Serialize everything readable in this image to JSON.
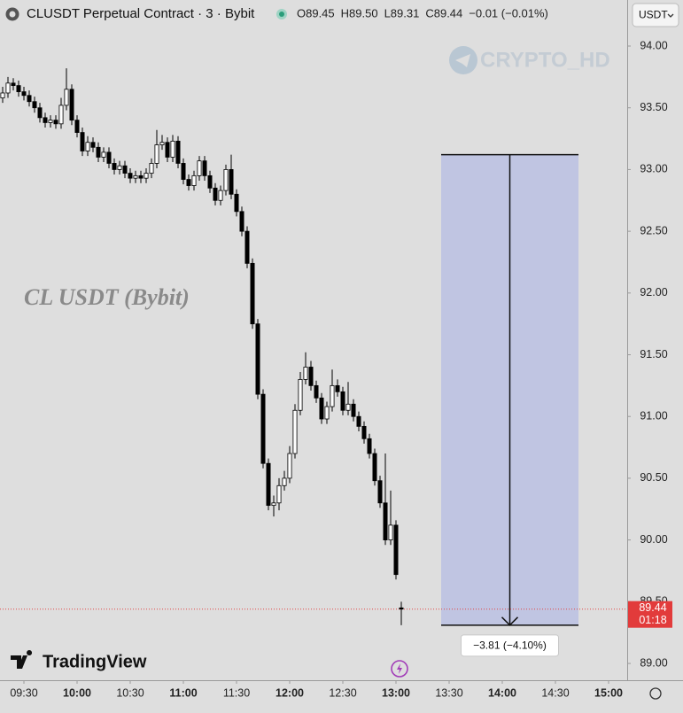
{
  "chart_data": {
    "type": "candlestick",
    "title": "CLUSDT Perpetual Contract · 3 · Bybit",
    "ohlc_header": [
      "O89.45",
      "H89.50",
      "L89.31",
      "C89.44",
      "−0.01 (−0.01%)"
    ],
    "currency": "USDT",
    "watermark": "CRYPTO_HD",
    "annotation": "CL USDT (Bybit)",
    "brand": "TradingView",
    "last_price": 89.44,
    "last_price_label": "89.44",
    "countdown": "01:18",
    "up_color": "#ffffff",
    "down_color": "#000000",
    "x": [
      558,
      561,
      564,
      567,
      570,
      573,
      576,
      579,
      582,
      585,
      588,
      591,
      594,
      597,
      600,
      603,
      606,
      609,
      612,
      615,
      618,
      621,
      624,
      627,
      630,
      633,
      636,
      639,
      642,
      645,
      648,
      651,
      654,
      657,
      660,
      663,
      666,
      669,
      672,
      675,
      678,
      681,
      684,
      687,
      690,
      693,
      696,
      699,
      702,
      705,
      708,
      711,
      714,
      717,
      720,
      723,
      726,
      729,
      732,
      735,
      738,
      741,
      744,
      747,
      750,
      753,
      756,
      759,
      762,
      765,
      768,
      771,
      774,
      777,
      780,
      783
    ],
    "open": [
      93.58,
      93.62,
      93.7,
      93.68,
      93.63,
      93.6,
      93.55,
      93.5,
      93.42,
      93.38,
      93.4,
      93.37,
      93.52,
      93.65,
      93.4,
      93.3,
      93.15,
      93.22,
      93.18,
      93.1,
      93.14,
      93.05,
      93.0,
      93.03,
      92.97,
      92.93,
      92.95,
      92.93,
      92.97,
      93.05,
      93.2,
      93.22,
      93.1,
      93.23,
      93.05,
      92.92,
      92.87,
      92.95,
      93.07,
      92.95,
      92.85,
      92.75,
      92.83,
      93.0,
      92.8,
      92.66,
      92.5,
      92.24,
      91.75,
      91.18,
      90.62,
      90.28,
      90.3,
      90.44,
      90.5,
      90.7,
      91.05,
      91.3,
      91.4,
      91.25,
      91.15,
      90.98,
      91.08,
      91.25,
      91.2,
      91.05,
      91.1,
      91.0,
      90.92,
      90.82,
      90.7,
      90.48,
      90.3,
      90.0,
      90.12,
      89.45
    ],
    "high": [
      93.67,
      93.75,
      93.74,
      93.72,
      93.67,
      93.64,
      93.59,
      93.54,
      93.46,
      93.44,
      93.44,
      93.58,
      93.82,
      93.69,
      93.44,
      93.34,
      93.27,
      93.26,
      93.22,
      93.18,
      93.18,
      93.09,
      93.07,
      93.07,
      93.01,
      92.99,
      92.99,
      93.01,
      93.09,
      93.32,
      93.28,
      93.26,
      93.28,
      93.27,
      93.09,
      92.96,
      92.99,
      93.11,
      93.11,
      92.99,
      92.89,
      92.87,
      93.04,
      93.12,
      92.84,
      92.7,
      92.54,
      92.28,
      91.79,
      91.22,
      90.66,
      90.36,
      90.5,
      90.56,
      90.76,
      91.1,
      91.36,
      91.52,
      91.45,
      91.29,
      91.19,
      91.12,
      91.38,
      91.3,
      91.24,
      91.28,
      91.14,
      91.04,
      90.96,
      90.86,
      90.74,
      90.52,
      90.7,
      90.4,
      90.16,
      89.5
    ],
    "low": [
      93.54,
      93.58,
      93.64,
      93.59,
      93.56,
      93.51,
      93.46,
      93.38,
      93.34,
      93.34,
      93.33,
      93.33,
      93.48,
      93.36,
      93.26,
      93.11,
      93.11,
      93.14,
      93.06,
      93.06,
      93.01,
      92.96,
      92.96,
      92.93,
      92.89,
      92.89,
      92.89,
      92.89,
      92.93,
      93.01,
      93.16,
      93.06,
      93.06,
      93.01,
      92.88,
      92.83,
      92.83,
      92.91,
      92.91,
      92.81,
      92.71,
      92.71,
      92.79,
      92.76,
      92.62,
      92.46,
      92.2,
      91.71,
      91.14,
      90.58,
      90.24,
      90.19,
      90.24,
      90.4,
      90.46,
      90.66,
      91.01,
      91.26,
      91.21,
      91.11,
      90.94,
      90.94,
      91.04,
      91.16,
      91.01,
      91.01,
      90.96,
      90.88,
      90.78,
      90.66,
      90.44,
      90.26,
      89.96,
      89.96,
      89.68,
      89.31
    ],
    "close": [
      93.62,
      93.7,
      93.68,
      93.63,
      93.6,
      93.55,
      93.5,
      93.42,
      93.38,
      93.4,
      93.37,
      93.52,
      93.65,
      93.4,
      93.3,
      93.15,
      93.22,
      93.18,
      93.1,
      93.14,
      93.05,
      93.0,
      93.03,
      92.97,
      92.93,
      92.95,
      92.93,
      92.97,
      93.05,
      93.2,
      93.22,
      93.1,
      93.23,
      93.05,
      92.92,
      92.87,
      92.95,
      93.07,
      92.95,
      92.85,
      92.75,
      92.83,
      93.0,
      92.8,
      92.66,
      92.5,
      92.24,
      91.75,
      91.18,
      90.62,
      90.28,
      90.3,
      90.44,
      90.5,
      90.7,
      91.05,
      91.3,
      91.4,
      91.25,
      91.15,
      90.98,
      91.08,
      91.25,
      91.2,
      91.05,
      91.1,
      91.0,
      90.92,
      90.82,
      90.7,
      90.48,
      90.3,
      90.0,
      90.12,
      89.72,
      89.44
    ],
    "xlim": [
      556.5,
      910.5
    ],
    "ylim": [
      88.864,
      94.373
    ],
    "xticks": [
      {
        "value": 570,
        "label": "09:30"
      },
      {
        "value": 600,
        "label": "10:00"
      },
      {
        "value": 630,
        "label": "10:30"
      },
      {
        "value": 660,
        "label": "11:00"
      },
      {
        "value": 690,
        "label": "11:30"
      },
      {
        "value": 720,
        "label": "12:00"
      },
      {
        "value": 750,
        "label": "12:30"
      },
      {
        "value": 780,
        "label": "13:00"
      },
      {
        "value": 810,
        "label": "13:30"
      },
      {
        "value": 840,
        "label": "14:00"
      },
      {
        "value": 870,
        "label": "14:30"
      },
      {
        "value": 900,
        "label": "15:00"
      }
    ],
    "yticks": [
      {
        "value": 89,
        "label": "89.00"
      },
      {
        "value": 89.5,
        "label": "89.50"
      },
      {
        "value": 90,
        "label": "90.00"
      },
      {
        "value": 90.5,
        "label": "90.50"
      },
      {
        "value": 91,
        "label": "91.00"
      },
      {
        "value": 91.5,
        "label": "91.50"
      },
      {
        "value": 92,
        "label": "92.00"
      },
      {
        "value": 92.5,
        "label": "92.50"
      },
      {
        "value": 93,
        "label": "93.00"
      },
      {
        "value": 93.5,
        "label": "93.50"
      },
      {
        "value": 94,
        "label": "94.00"
      }
    ],
    "measure": {
      "from": 93.12,
      "to": 89.31,
      "start": 805.5,
      "end": 883,
      "label": "−3.81 (−4.10%)"
    }
  }
}
